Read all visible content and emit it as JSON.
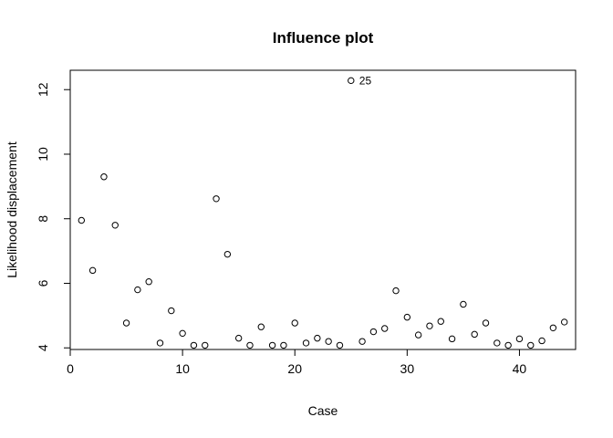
{
  "chart_data": {
    "type": "scatter",
    "title": "Influence plot",
    "xlabel": "Case",
    "ylabel": "Likelihood displacement",
    "xlim": [
      0,
      45
    ],
    "ylim": [
      3.95,
      12.6
    ],
    "x_ticks": [
      0,
      10,
      20,
      30,
      40
    ],
    "y_ticks": [
      4,
      6,
      8,
      10,
      12
    ],
    "grid": false,
    "legend": "none",
    "marker": "open-circle",
    "marker_color": "#000000",
    "x": [
      1,
      2,
      3,
      4,
      5,
      6,
      7,
      8,
      9,
      10,
      11,
      12,
      13,
      14,
      15,
      16,
      17,
      18,
      19,
      20,
      21,
      22,
      23,
      24,
      25,
      26,
      27,
      28,
      29,
      30,
      31,
      32,
      33,
      34,
      35,
      36,
      37,
      38,
      39,
      40,
      41,
      42,
      43,
      44
    ],
    "y": [
      7.95,
      6.4,
      9.3,
      7.8,
      4.77,
      5.8,
      6.05,
      4.15,
      5.15,
      4.45,
      4.08,
      4.08,
      8.62,
      6.9,
      4.3,
      4.08,
      4.65,
      4.08,
      4.08,
      4.77,
      4.15,
      4.3,
      4.2,
      4.08,
      12.28,
      4.2,
      4.5,
      4.6,
      5.77,
      4.95,
      4.4,
      4.68,
      4.82,
      4.28,
      5.35,
      4.42,
      4.77,
      4.15,
      4.08,
      4.28,
      4.08,
      4.22,
      4.62,
      4.8
    ],
    "annotations": [
      {
        "x": 25,
        "y": 12.28,
        "text": "25"
      }
    ]
  }
}
